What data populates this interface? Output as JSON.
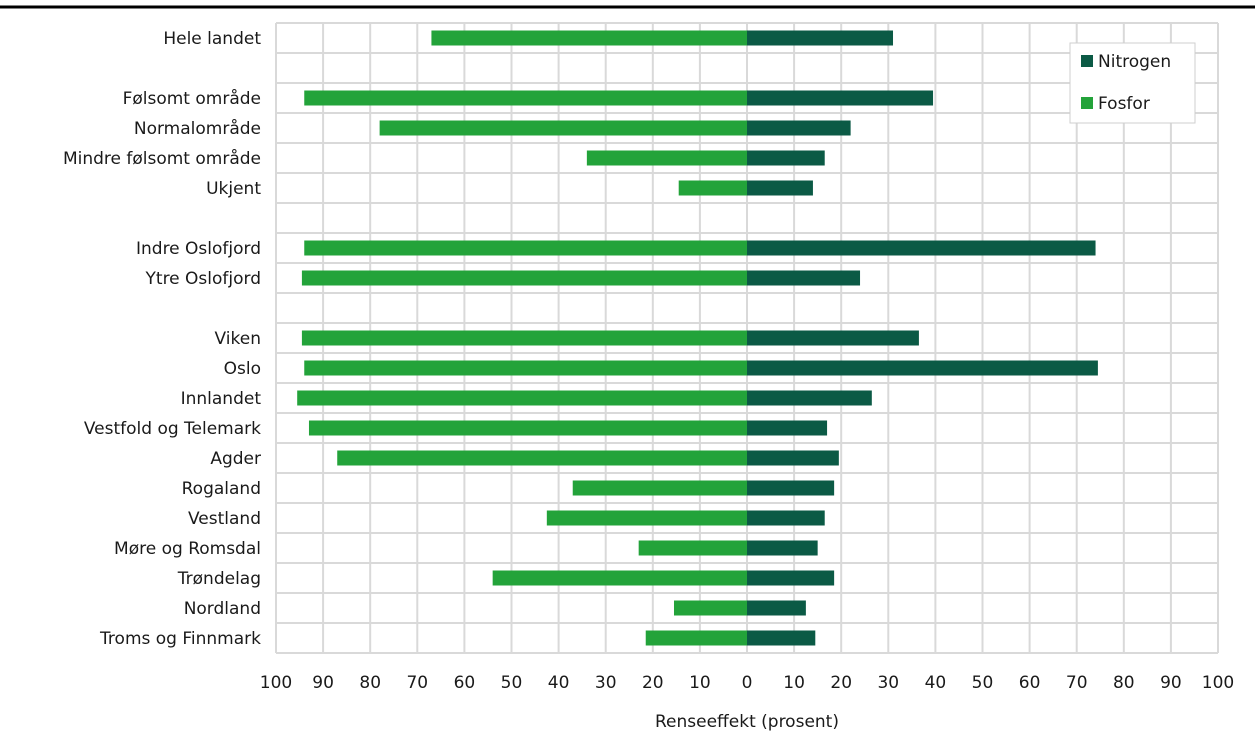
{
  "chart_data": {
    "type": "bar",
    "orientation": "horizontal-diverging",
    "xlabel": "Renseeffekt (prosent)",
    "xlim": [
      -100,
      100
    ],
    "tick_values": [
      -100,
      -90,
      -80,
      -70,
      -60,
      -50,
      -40,
      -30,
      -20,
      -10,
      0,
      10,
      20,
      30,
      40,
      50,
      60,
      70,
      80,
      90,
      100
    ],
    "tick_labels": [
      "100",
      "90",
      "80",
      "70",
      "60",
      "50",
      "40",
      "30",
      "20",
      "10",
      "0",
      "10",
      "20",
      "30",
      "40",
      "50",
      "60",
      "70",
      "80",
      "90",
      "100"
    ],
    "grid": true,
    "legend_position": "top-right",
    "categories": [
      "Hele landet",
      "",
      "Følsomt område",
      "Normalområde",
      "Mindre følsomt område",
      "Ukjent",
      "",
      "Indre Oslofjord",
      "Ytre Oslofjord",
      "",
      "Viken",
      "Oslo",
      "Innlandet",
      "Vestfold og Telemark",
      "Agder",
      "Rogaland",
      "Vestland",
      "Møre og Romsdal",
      "Trøndelag",
      "Nordland",
      "Troms og Finnmark"
    ],
    "series": [
      {
        "name": "Nitrogen",
        "color": "#0b5a45",
        "values": [
          31,
          null,
          39.5,
          22,
          16.5,
          14,
          null,
          74,
          24,
          null,
          36.5,
          74.5,
          26.5,
          17,
          19.5,
          18.5,
          16.5,
          15,
          18.5,
          12.5,
          14.5
        ]
      },
      {
        "name": "Fosfor",
        "color": "#23a33a",
        "values": [
          67,
          null,
          94,
          78,
          34,
          14.5,
          null,
          94,
          94.5,
          null,
          94.5,
          94,
          95.5,
          93,
          87,
          37,
          42.5,
          23,
          54,
          15.5,
          21.5
        ]
      }
    ]
  }
}
